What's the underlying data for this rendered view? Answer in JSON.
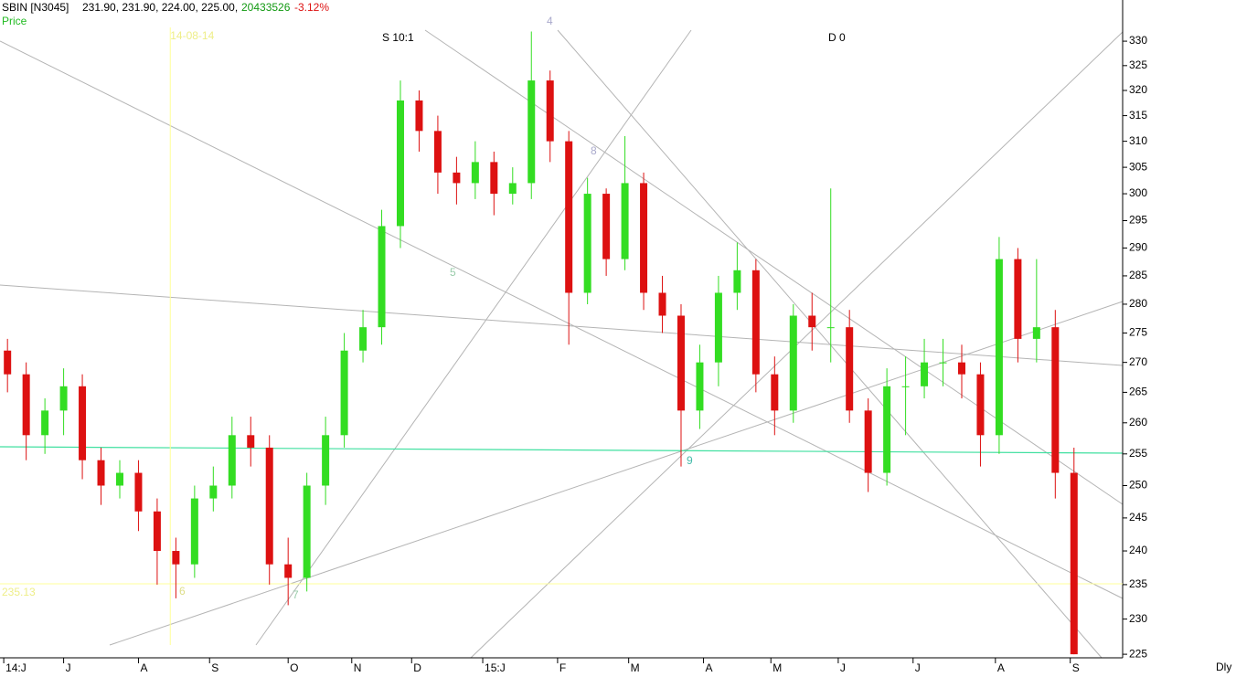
{
  "chart_data": {
    "type": "candlestick",
    "symbol": "SBIN [N3045]",
    "ohlc_text": "231.90, 231.90, 224.00, 225.00,",
    "volume_text": "20433526",
    "change_text": "-3.12%",
    "price_label": "Price",
    "period_label": "Dly",
    "annotations": [
      "S 10:1",
      "D 0",
      "4",
      "8",
      "5",
      "9",
      "7",
      "6"
    ],
    "vline": {
      "x": 45.5,
      "label": "14-08-14"
    },
    "hline": {
      "value": 235.13,
      "label": "235.13"
    },
    "up_color": "#33dd22",
    "down_color": "#dd1111",
    "log_scale": true,
    "x": [
      2,
      7,
      12,
      17,
      22,
      27,
      32,
      37,
      42,
      47,
      52,
      57,
      62,
      67,
      72,
      77,
      82,
      87,
      92,
      97,
      102,
      107,
      112,
      117,
      122,
      127,
      132,
      137,
      142,
      147,
      152,
      157,
      162,
      167,
      172,
      177,
      182,
      187,
      192,
      197,
      202,
      207,
      212,
      217,
      222,
      227,
      232,
      237,
      242,
      247,
      252,
      257,
      262,
      267,
      272,
      277,
      282,
      287
    ],
    "open": [
      272,
      268,
      258,
      262,
      266,
      254,
      250,
      252,
      246,
      240,
      238,
      248,
      250,
      258,
      256,
      238,
      236,
      250,
      258,
      272,
      276,
      294,
      318,
      312,
      304,
      302,
      306,
      300,
      302,
      322,
      310,
      282,
      300,
      288,
      302,
      282,
      278,
      262,
      270,
      282,
      286,
      268,
      262,
      278,
      276,
      276,
      262,
      252,
      266,
      266,
      270,
      270,
      268,
      258,
      288,
      274,
      276,
      252
    ],
    "high": [
      274,
      270,
      264,
      269,
      268,
      256,
      254,
      254,
      248,
      242,
      250,
      253,
      261,
      261,
      258,
      242,
      252,
      261,
      275,
      279,
      297,
      322,
      320,
      315,
      307,
      310,
      308,
      305,
      332,
      324,
      312,
      303,
      301,
      311,
      304,
      285,
      280,
      273,
      285,
      291,
      288,
      271,
      280,
      282,
      301,
      279,
      264,
      269,
      271,
      274,
      274,
      273,
      270,
      292,
      290,
      288,
      279,
      256
    ],
    "low": [
      265,
      254,
      255,
      258,
      251,
      247,
      248,
      243,
      235,
      233,
      236,
      246,
      248,
      253,
      235,
      232,
      234,
      247,
      256,
      270,
      273,
      290,
      308,
      300,
      298,
      299,
      296,
      298,
      299,
      306,
      273,
      280,
      285,
      286,
      279,
      275,
      253,
      259,
      266,
      279,
      265,
      258,
      260,
      272,
      270,
      260,
      249,
      250,
      258,
      264,
      266,
      264,
      253,
      255,
      270,
      270,
      248,
      225
    ],
    "close": [
      268,
      258,
      262,
      266,
      254,
      250,
      252,
      246,
      240,
      238,
      248,
      250,
      258,
      256,
      238,
      236,
      250,
      258,
      272,
      276,
      294,
      318,
      312,
      304,
      302,
      306,
      300,
      302,
      322,
      310,
      282,
      300,
      288,
      302,
      282,
      278,
      262,
      270,
      282,
      286,
      268,
      262,
      278,
      276,
      276,
      262,
      252,
      266,
      266,
      270,
      270,
      268,
      258,
      288,
      274,
      276,
      252,
      225
    ],
    "xlim": [
      0,
      300
    ],
    "xticks": [
      {
        "value": 1,
        "label": "14:J"
      },
      {
        "value": 17,
        "label": "J"
      },
      {
        "value": 37,
        "label": "A"
      },
      {
        "value": 56,
        "label": "S"
      },
      {
        "value": 77,
        "label": "O"
      },
      {
        "value": 94,
        "label": "N"
      },
      {
        "value": 110,
        "label": "D"
      },
      {
        "value": 129,
        "label": "15:J"
      },
      {
        "value": 149,
        "label": "F"
      },
      {
        "value": 168,
        "label": "M"
      },
      {
        "value": 188,
        "label": "A"
      },
      {
        "value": 206,
        "label": "M"
      },
      {
        "value": 224,
        "label": "J"
      },
      {
        "value": 244,
        "label": "J"
      },
      {
        "value": 266,
        "label": "A"
      },
      {
        "value": 286,
        "label": "S"
      }
    ],
    "ylim": [
      224.5,
      338.6
    ],
    "yticks": [
      225,
      230,
      235,
      240,
      245,
      250,
      255,
      260,
      265,
      270,
      275,
      280,
      285,
      290,
      295,
      300,
      305,
      310,
      315,
      320,
      325,
      330
    ]
  }
}
